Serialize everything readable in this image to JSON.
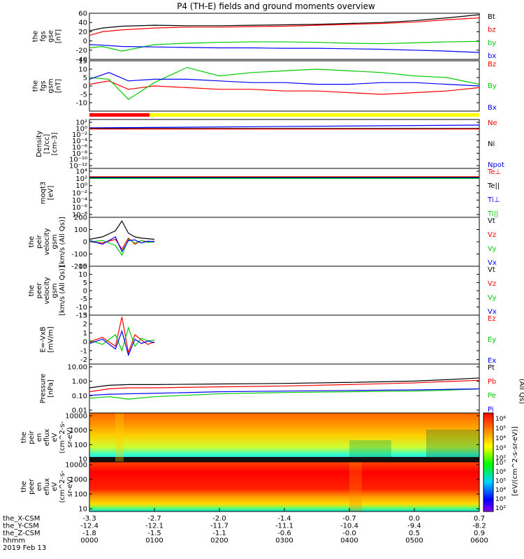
{
  "title": "P4 (TH-E) fields and ground moments overview",
  "colors": {
    "black": "#000000",
    "red": "#ff0000",
    "green": "#00cc00",
    "blue": "#0000ff",
    "yellow": "#ffff00"
  },
  "chart_data": [
    {
      "type": "line",
      "id": "fgs_gse",
      "ylabel": [
        "the",
        "fgs",
        "gse",
        "[nT]"
      ],
      "yticks": [
        60,
        40,
        20,
        0,
        -20,
        -40
      ],
      "ylim": [
        -40,
        60
      ],
      "legend": [
        {
          "label": "Bt",
          "color": "black"
        },
        {
          "label": "bz",
          "color": "red"
        },
        {
          "label": "by",
          "color": "green"
        },
        {
          "label": "bx",
          "color": "blue"
        }
      ],
      "series": [
        {
          "name": "Bt",
          "color": "black",
          "x": [
            0,
            0.2,
            0.5,
            1,
            1.5,
            2,
            2.5,
            3,
            3.5,
            4,
            4.5,
            5,
            5.5,
            6
          ],
          "y": [
            22,
            28,
            32,
            34,
            33,
            33,
            34,
            35,
            36,
            38,
            40,
            44,
            50,
            57
          ]
        },
        {
          "name": "bz",
          "color": "red",
          "x": [
            0,
            0.2,
            0.5,
            1,
            1.5,
            2,
            2.5,
            3,
            3.5,
            4,
            4.5,
            5,
            5.5,
            6
          ],
          "y": [
            12,
            20,
            24,
            28,
            30,
            30,
            31,
            32,
            34,
            36,
            38,
            41,
            46,
            50
          ]
        },
        {
          "name": "by",
          "color": "green",
          "x": [
            0,
            0.2,
            0.5,
            1,
            1.5,
            2,
            2.5,
            3,
            3.5,
            4,
            4.5,
            5,
            5.5,
            6
          ],
          "y": [
            -15,
            -12,
            -22,
            -8,
            -5,
            -3,
            -2,
            -2,
            -3,
            -5,
            -6,
            -4,
            -2,
            -1
          ]
        },
        {
          "name": "bx",
          "color": "blue",
          "x": [
            0,
            0.2,
            0.5,
            1,
            1.5,
            2,
            2.5,
            3,
            3.5,
            4,
            4.5,
            5,
            5.5,
            6
          ],
          "y": [
            -8,
            -9,
            -12,
            -13,
            -14,
            -15,
            -15,
            -16,
            -16,
            -17,
            -18,
            -20,
            -22,
            -25
          ]
        }
      ]
    },
    {
      "type": "line",
      "id": "fgs_gsm",
      "ylabel": [
        "the",
        "fgs",
        "gsm",
        "[nT]"
      ],
      "yticks": [
        15,
        10,
        5,
        0,
        -5,
        -10
      ],
      "ylim": [
        -15,
        15
      ],
      "legend": [
        {
          "label": "Bz",
          "color": "red"
        },
        {
          "label": "By",
          "color": "green"
        },
        {
          "label": "Bx",
          "color": "blue"
        }
      ],
      "series": [
        {
          "name": "Bz",
          "color": "red",
          "x": [
            0,
            0.3,
            0.6,
            1,
            1.5,
            2,
            2.5,
            3,
            3.5,
            4,
            4.5,
            5,
            5.5,
            6
          ],
          "y": [
            1,
            3,
            -2,
            0,
            -1,
            -2,
            -2,
            -3,
            -3,
            -4,
            -5,
            -4,
            -3,
            -1
          ]
        },
        {
          "name": "By",
          "color": "green",
          "x": [
            0,
            0.3,
            0.6,
            1,
            1.5,
            2,
            2.5,
            3,
            3.5,
            4,
            4.5,
            5,
            5.5,
            6
          ],
          "y": [
            5,
            4,
            -8,
            2,
            11,
            6,
            8,
            9,
            10,
            9,
            8,
            6,
            5,
            1
          ]
        },
        {
          "name": "Bx",
          "color": "blue",
          "x": [
            0,
            0.3,
            0.6,
            1,
            1.5,
            2,
            2.5,
            3,
            3.5,
            4,
            4.5,
            5,
            5.5,
            6
          ],
          "y": [
            4,
            8,
            3,
            4,
            4,
            3,
            2,
            2,
            1,
            1,
            2,
            2,
            1,
            0
          ]
        }
      ]
    },
    {
      "type": "line",
      "id": "density",
      "ylabel": [
        "Density",
        "[1/cc]",
        "[cm-3]"
      ],
      "yticks": [
        "10²",
        "10⁰",
        "10⁻²",
        "10⁻⁴",
        "10⁻⁶",
        "10⁻⁸",
        "10⁻¹⁰",
        "10⁻¹²"
      ],
      "legend": [
        {
          "label": "Ne",
          "color": "red"
        },
        {
          "label": "Ni",
          "color": "black"
        },
        {
          "label": "Npot",
          "color": "blue"
        }
      ]
    },
    {
      "type": "line",
      "id": "temperature",
      "ylabel": [
        "moqt3",
        "[eV]"
      ],
      "yticks": [
        "10⁴",
        "10²",
        "10⁰",
        "10⁻²",
        "10⁻⁴",
        "10⁻⁶",
        "10⁻⁸"
      ],
      "legend": [
        {
          "label": "Te⊥",
          "color": "red"
        },
        {
          "label": "Te||",
          "color": "black"
        },
        {
          "label": "Ti⊥",
          "color": "blue"
        },
        {
          "label": "Ti||",
          "color": "green"
        }
      ]
    },
    {
      "type": "line",
      "id": "peir_velocity",
      "ylabel": [
        "the",
        "peir",
        "velocity",
        "gsm",
        "[km/s (All Qs)]"
      ],
      "yticks": [
        200,
        100,
        0,
        -100,
        -200
      ],
      "ylim": [
        -200,
        200
      ],
      "legend": [
        {
          "label": "Vt",
          "color": "black"
        },
        {
          "label": "Vz",
          "color": "red"
        },
        {
          "label": "Vy",
          "color": "green"
        },
        {
          "label": "Vx",
          "color": "blue"
        }
      ],
      "series": [
        {
          "name": "Vt",
          "color": "black",
          "x": [
            0,
            0.2,
            0.4,
            0.5,
            0.6,
            0.7,
            0.8,
            0.9,
            1.0
          ],
          "y": [
            20,
            40,
            90,
            170,
            70,
            40,
            30,
            25,
            20
          ]
        },
        {
          "name": "Vz",
          "color": "red",
          "x": [
            0,
            0.2,
            0.4,
            0.5,
            0.6,
            0.7,
            0.8,
            0.9,
            1.0
          ],
          "y": [
            0,
            -10,
            20,
            -60,
            30,
            -20,
            10,
            0,
            5
          ]
        },
        {
          "name": "Vy",
          "color": "green",
          "x": [
            0,
            0.2,
            0.4,
            0.5,
            0.6,
            0.7,
            0.8,
            0.9,
            1.0
          ],
          "y": [
            0,
            10,
            -30,
            -110,
            20,
            -10,
            10,
            -5,
            0
          ]
        },
        {
          "name": "Vx",
          "color": "blue",
          "x": [
            0,
            0.2,
            0.4,
            0.5,
            0.6,
            0.7,
            0.8,
            0.9,
            1.0
          ],
          "y": [
            10,
            -20,
            40,
            -80,
            10,
            15,
            -10,
            5,
            0
          ]
        }
      ]
    },
    {
      "type": "line",
      "id": "peer_velocity",
      "ylabel": [
        "the",
        "peer",
        "velocity",
        "gsm",
        "[km/s (All Qs)]"
      ],
      "yticks": [
        15,
        10,
        5,
        0,
        -5,
        -10,
        -15
      ],
      "ylim": [
        -15,
        15
      ],
      "legend": [
        {
          "label": "Vt",
          "color": "black"
        },
        {
          "label": "Vz",
          "color": "red"
        },
        {
          "label": "Vy",
          "color": "green"
        },
        {
          "label": "Vx",
          "color": "blue"
        }
      ],
      "series": []
    },
    {
      "type": "line",
      "id": "efield",
      "ylabel": [
        "E=-VxB",
        "[mV/m]"
      ],
      "yticks": [
        3,
        2,
        1,
        0,
        -1,
        -2
      ],
      "ylim": [
        -2.5,
        3
      ],
      "legend": [
        {
          "label": "Ez",
          "color": "red"
        },
        {
          "label": "Ey",
          "color": "green"
        },
        {
          "label": "Ex",
          "color": "blue"
        }
      ],
      "series": [
        {
          "name": "Ez",
          "color": "red",
          "x": [
            0,
            0.2,
            0.4,
            0.5,
            0.6,
            0.7,
            0.8,
            0.9,
            1.0
          ],
          "y": [
            0,
            0.5,
            -0.5,
            2.8,
            -1.2,
            0.8,
            0.2,
            -0.3,
            0
          ]
        },
        {
          "name": "Ey",
          "color": "green",
          "x": [
            0,
            0.2,
            0.4,
            0.5,
            0.6,
            0.7,
            0.8,
            0.9,
            1.0
          ],
          "y": [
            0.2,
            -0.3,
            0.8,
            -1.0,
            1.6,
            -0.5,
            0.4,
            0.1,
            0.2
          ]
        },
        {
          "name": "Ex",
          "color": "blue",
          "x": [
            0,
            0.2,
            0.4,
            0.5,
            0.6,
            0.7,
            0.8,
            0.9,
            1.0
          ],
          "y": [
            -0.2,
            0.3,
            -0.8,
            1.2,
            -1.5,
            0.3,
            -0.2,
            0.1,
            -0.1
          ]
        }
      ]
    },
    {
      "type": "line",
      "id": "pressure",
      "ylabel": [
        "Pressure",
        "[nPa]"
      ],
      "yticks": [
        "10.00",
        "1.00",
        "0.10",
        "0.01"
      ],
      "ylim": [
        0.01,
        10
      ],
      "log": true,
      "legend": [
        {
          "label": "Pt",
          "color": "black"
        },
        {
          "label": "Pb",
          "color": "red"
        },
        {
          "label": "Pe",
          "color": "green"
        },
        {
          "label": "Pi",
          "color": "blue"
        }
      ],
      "right_label": "(All Qs)",
      "series": [
        {
          "name": "Pt",
          "color": "black",
          "x": [
            0,
            0.3,
            0.6,
            1,
            2,
            3,
            4,
            5,
            5.5,
            6
          ],
          "y": [
            0.35,
            0.5,
            0.55,
            0.55,
            0.6,
            0.65,
            0.75,
            0.9,
            1.1,
            1.4
          ]
        },
        {
          "name": "Pb",
          "color": "red",
          "x": [
            0,
            0.3,
            0.6,
            1,
            2,
            3,
            4,
            5,
            5.5,
            6
          ],
          "y": [
            0.2,
            0.3,
            0.35,
            0.35,
            0.4,
            0.45,
            0.55,
            0.7,
            0.85,
            1.0
          ]
        },
        {
          "name": "Pe",
          "color": "green",
          "x": [
            0,
            0.3,
            0.6,
            1,
            2,
            3,
            4,
            5,
            5.5,
            6
          ],
          "y": [
            0.08,
            0.1,
            0.07,
            0.1,
            0.15,
            0.18,
            0.2,
            0.22,
            0.25,
            0.3
          ]
        },
        {
          "name": "Pi",
          "color": "blue",
          "x": [
            0,
            0.3,
            0.6,
            1,
            2,
            3,
            4,
            5,
            5.5,
            6
          ],
          "y": [
            0.12,
            0.14,
            0.15,
            0.16,
            0.2,
            0.22,
            0.24,
            0.26,
            0.28,
            0.3
          ]
        }
      ]
    },
    {
      "type": "heatmap",
      "id": "peir_eflux",
      "ylabel": [
        "the",
        "peir",
        "en",
        "eflux",
        "eV",
        "(cm^2-s-",
        "sr-eV)"
      ],
      "yticks": [
        "10000",
        "1000",
        "100",
        "10"
      ]
    },
    {
      "type": "heatmap",
      "id": "peer_eflux",
      "ylabel": [
        "the",
        "peer",
        "en",
        "eflux",
        "eV",
        "(cm^2-s-",
        "sr-eV)"
      ],
      "yticks": [
        "10000",
        "1000",
        "100",
        "10"
      ]
    }
  ],
  "colorbar": {
    "top_ticks": [
      "10⁶",
      "10⁵",
      "10⁴",
      "10³",
      "10²"
    ],
    "bottom_ticks": [
      "10⁷",
      "10⁶",
      "10⁵",
      "10⁴",
      "10³",
      "10²"
    ],
    "label": "[eV/(cm^2-s-sr-eV)]",
    "side_label": "(All Qs)"
  },
  "xaxis": {
    "rows": [
      {
        "label": "the_X-CSM",
        "values": [
          "-3.3",
          "-2.7",
          "-2.0",
          "-1.4",
          "-0.7",
          "0.0",
          "0.7"
        ]
      },
      {
        "label": "the_Y-CSM",
        "values": [
          "-12.4",
          "-12.1",
          "-11.7",
          "-11.1",
          "-10.4",
          "-9.4",
          "-8.2"
        ]
      },
      {
        "label": "the_Z-CSM",
        "values": [
          "-1.8",
          "-1.5",
          "-1.1",
          "-0.6",
          "-0.0",
          "0.5",
          "0.9"
        ]
      },
      {
        "label": "hhmm",
        "values": [
          "0000",
          "0100",
          "0200",
          "0300",
          "0400",
          "0500",
          "0600"
        ]
      }
    ],
    "date": "2019 Feb 13"
  }
}
